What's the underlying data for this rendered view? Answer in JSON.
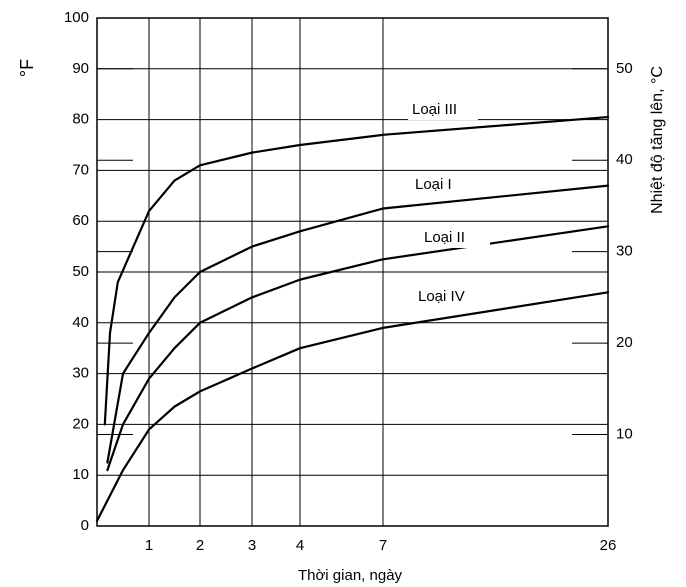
{
  "chart_data": {
    "type": "line",
    "x_label": "Thời gian, ngày",
    "y_label": "°F",
    "y2_label": "Nhiệt độ tăng lên, °C",
    "xlim": [
      0,
      26
    ],
    "xticks": [
      1,
      2,
      3,
      4,
      7,
      26
    ],
    "ylim": [
      0,
      100
    ],
    "yticks": [
      0,
      10,
      20,
      30,
      40,
      50,
      60,
      70,
      80,
      90,
      100
    ],
    "y2lim": [
      0,
      55.5556
    ],
    "y2ticks": [
      10,
      20,
      30,
      40,
      50
    ],
    "grid": true,
    "series": [
      {
        "name": "Loại III",
        "color": "#000000",
        "x": [
          0.15,
          0.25,
          0.4,
          1,
          1.5,
          2,
          3,
          4,
          7,
          26
        ],
        "values": [
          20,
          38,
          48,
          62,
          68,
          71,
          73.5,
          75,
          77,
          80.5
        ]
      },
      {
        "name": "Loại I",
        "color": "#000000",
        "x": [
          0.2,
          0.5,
          1,
          1.5,
          2,
          3,
          4,
          7,
          26
        ],
        "values": [
          12.5,
          30,
          38,
          45,
          50,
          55,
          58,
          62.5,
          67
        ]
      },
      {
        "name": "Loại II",
        "color": "#000000",
        "x": [
          0.2,
          0.5,
          1,
          1.5,
          2,
          3,
          4,
          7,
          26
        ],
        "values": [
          11,
          20,
          29,
          35,
          40,
          45,
          48.5,
          52.5,
          59
        ]
      },
      {
        "name": "Loại IV",
        "color": "#000000",
        "x": [
          0,
          0.5,
          1,
          1.5,
          2,
          3,
          4,
          7,
          26
        ],
        "values": [
          1,
          11,
          19,
          23.5,
          26.5,
          31,
          35,
          39,
          46
        ]
      }
    ]
  }
}
